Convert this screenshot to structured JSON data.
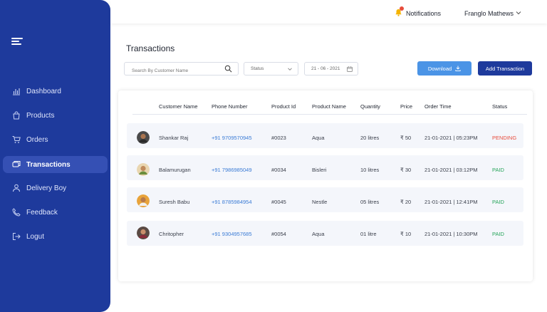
{
  "sidebar": {
    "items": [
      {
        "label": "Dashboard",
        "icon": "chart-icon",
        "active": false
      },
      {
        "label": "Products",
        "icon": "bag-icon",
        "active": false
      },
      {
        "label": "Orders",
        "icon": "cart-icon",
        "active": false
      },
      {
        "label": "Transactions",
        "icon": "cards-icon",
        "active": true
      },
      {
        "label": "Delivery Boy",
        "icon": "person-icon",
        "active": false
      },
      {
        "label": "Feedback",
        "icon": "phone-icon",
        "active": false
      },
      {
        "label": "Logut",
        "icon": "logout-icon",
        "active": false
      }
    ]
  },
  "header": {
    "notifications_label": "Notifications",
    "user_name": "Franglo Mathews"
  },
  "page": {
    "title": "Transactions"
  },
  "controls": {
    "search_placeholder": "Search By Customer Name",
    "status_label": "Status",
    "date_value": "21 - 06 - 2021",
    "download_label": "Download",
    "add_label": "Add Transaction"
  },
  "table": {
    "columns": [
      "Customer Name",
      "Phone Number",
      "Product Id",
      "Product Name",
      "Quantity",
      "Price",
      "Order Time",
      "Status"
    ],
    "rows": [
      {
        "name": "Shankar Raj",
        "phone": "+91 9709570945",
        "product_id": "#0023",
        "product_name": "Aqua",
        "quantity": "20 litres",
        "price": "₹ 50",
        "order_time": "21-01-2021 |  05:23PM",
        "status": "PENDING"
      },
      {
        "name": "Balamurugan",
        "phone": "+91 7986985049",
        "product_id": "#0034",
        "product_name": "Bisleri",
        "quantity": "10 litres",
        "price": "₹ 30",
        "order_time": "21-01-2021 | 03:12PM",
        "status": "PAID"
      },
      {
        "name": "Suresh Babu",
        "phone": "+91 8785984954",
        "product_id": "#0045",
        "product_name": "Nestle",
        "quantity": "05 litres",
        "price": "₹ 20",
        "order_time": "21-01-2021 | 12:41PM",
        "status": "PAID"
      },
      {
        "name": "Chritopher",
        "phone": "+91 9304957685",
        "product_id": "#0054",
        "product_name": "Aqua",
        "quantity": "01 litre",
        "price": "₹ 10",
        "order_time": "21-01-2021 | 10:30PM",
        "status": "PAID"
      }
    ]
  },
  "colors": {
    "sidebar_bg": "#1e3a9c",
    "active_item_bg": "#3550b4",
    "download_btn": "#4b94e6",
    "add_btn": "#1e3a9c",
    "pending": "#e74c3c",
    "paid": "#27a55b",
    "phone_link": "#3a7bd5"
  }
}
